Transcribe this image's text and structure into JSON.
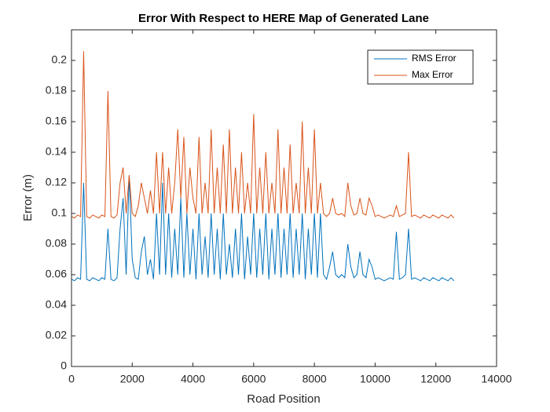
{
  "chart_data": {
    "type": "line",
    "title": "Error With Respect to HERE Map of Generated Lane",
    "x_label": "Road Position",
    "y_label": "Error (m)",
    "xlim": [
      0,
      14000
    ],
    "xticks": [
      0,
      2000,
      4000,
      6000,
      8000,
      10000,
      12000,
      14000
    ],
    "ylim": [
      0,
      0.22
    ],
    "yticks": [
      0,
      0.02,
      0.04,
      0.06,
      0.08,
      0.1,
      0.12,
      0.14,
      0.16,
      0.18,
      0.2
    ],
    "legend": "upper right",
    "x": [
      0,
      100,
      200,
      300,
      400,
      500,
      600,
      700,
      800,
      900,
      1000,
      1100,
      1200,
      1300,
      1400,
      1500,
      1600,
      1700,
      1800,
      1900,
      2000,
      2100,
      2200,
      2300,
      2400,
      2500,
      2600,
      2700,
      2800,
      2900,
      3000,
      3100,
      3200,
      3300,
      3400,
      3500,
      3600,
      3700,
      3800,
      3900,
      4000,
      4100,
      4200,
      4300,
      4400,
      4500,
      4600,
      4700,
      4800,
      4900,
      5000,
      5100,
      5200,
      5300,
      5400,
      5500,
      5600,
      5700,
      5800,
      5900,
      6000,
      6100,
      6200,
      6300,
      6400,
      6500,
      6600,
      6700,
      6800,
      6900,
      7000,
      7100,
      7200,
      7300,
      7400,
      7500,
      7600,
      7700,
      7800,
      7900,
      8000,
      8100,
      8200,
      8300,
      8400,
      8500,
      8600,
      8700,
      8800,
      8900,
      9000,
      9100,
      9200,
      9300,
      9400,
      9500,
      9600,
      9700,
      9800,
      9900,
      10000,
      10100,
      10200,
      10300,
      10400,
      10500,
      10600,
      10700,
      10800,
      10900,
      11000,
      11100,
      11200,
      11300,
      11400,
      11500,
      11600,
      11700,
      11800,
      11900,
      12000,
      12100,
      12200,
      12300,
      12400,
      12500,
      12600
    ],
    "series": [
      {
        "name": "RMS Error",
        "color": "#0072bd",
        "values": [
          0.057,
          0.056,
          0.058,
          0.057,
          0.12,
          0.057,
          0.056,
          0.058,
          0.057,
          0.056,
          0.058,
          0.057,
          0.09,
          0.057,
          0.056,
          0.058,
          0.09,
          0.11,
          0.06,
          0.125,
          0.07,
          0.058,
          0.057,
          0.075,
          0.085,
          0.06,
          0.07,
          0.057,
          0.1,
          0.06,
          0.12,
          0.06,
          0.1,
          0.058,
          0.09,
          0.06,
          0.11,
          0.058,
          0.1,
          0.06,
          0.09,
          0.057,
          0.1,
          0.06,
          0.085,
          0.058,
          0.1,
          0.06,
          0.09,
          0.057,
          0.1,
          0.06,
          0.08,
          0.058,
          0.09,
          0.06,
          0.1,
          0.057,
          0.085,
          0.06,
          0.1,
          0.058,
          0.09,
          0.06,
          0.1,
          0.057,
          0.09,
          0.06,
          0.1,
          0.058,
          0.09,
          0.06,
          0.1,
          0.058,
          0.09,
          0.06,
          0.1,
          0.057,
          0.09,
          0.06,
          0.1,
          0.058,
          0.1,
          0.06,
          0.057,
          0.065,
          0.075,
          0.06,
          0.058,
          0.06,
          0.058,
          0.08,
          0.065,
          0.058,
          0.06,
          0.075,
          0.06,
          0.058,
          0.07,
          0.065,
          0.057,
          0.058,
          0.057,
          0.056,
          0.057,
          0.058,
          0.057,
          0.088,
          0.057,
          0.058,
          0.06,
          0.09,
          0.057,
          0.058,
          0.057,
          0.056,
          0.058,
          0.057,
          0.056,
          0.058,
          0.057,
          0.056,
          0.058,
          0.057,
          0.056,
          0.058,
          0.056
        ]
      },
      {
        "name": "Max Error",
        "color": "#d95319",
        "values": [
          0.098,
          0.097,
          0.099,
          0.098,
          0.206,
          0.098,
          0.097,
          0.099,
          0.098,
          0.097,
          0.099,
          0.098,
          0.18,
          0.098,
          0.097,
          0.099,
          0.12,
          0.13,
          0.1,
          0.125,
          0.1,
          0.098,
          0.105,
          0.12,
          0.11,
          0.1,
          0.115,
          0.1,
          0.14,
          0.1,
          0.14,
          0.1,
          0.13,
          0.1,
          0.12,
          0.155,
          0.11,
          0.15,
          0.1,
          0.13,
          0.11,
          0.1,
          0.15,
          0.1,
          0.12,
          0.1,
          0.155,
          0.1,
          0.13,
          0.1,
          0.145,
          0.1,
          0.155,
          0.1,
          0.13,
          0.1,
          0.14,
          0.1,
          0.12,
          0.1,
          0.165,
          0.1,
          0.13,
          0.1,
          0.14,
          0.1,
          0.12,
          0.1,
          0.155,
          0.1,
          0.13,
          0.1,
          0.145,
          0.1,
          0.12,
          0.1,
          0.16,
          0.1,
          0.13,
          0.1,
          0.155,
          0.1,
          0.12,
          0.1,
          0.098,
          0.1,
          0.11,
          0.1,
          0.099,
          0.1,
          0.098,
          0.12,
          0.105,
          0.099,
          0.1,
          0.11,
          0.1,
          0.099,
          0.11,
          0.105,
          0.098,
          0.099,
          0.098,
          0.097,
          0.098,
          0.099,
          0.098,
          0.105,
          0.098,
          0.099,
          0.1,
          0.14,
          0.098,
          0.099,
          0.098,
          0.097,
          0.099,
          0.098,
          0.097,
          0.099,
          0.098,
          0.097,
          0.099,
          0.098,
          0.097,
          0.099,
          0.097
        ]
      }
    ]
  }
}
